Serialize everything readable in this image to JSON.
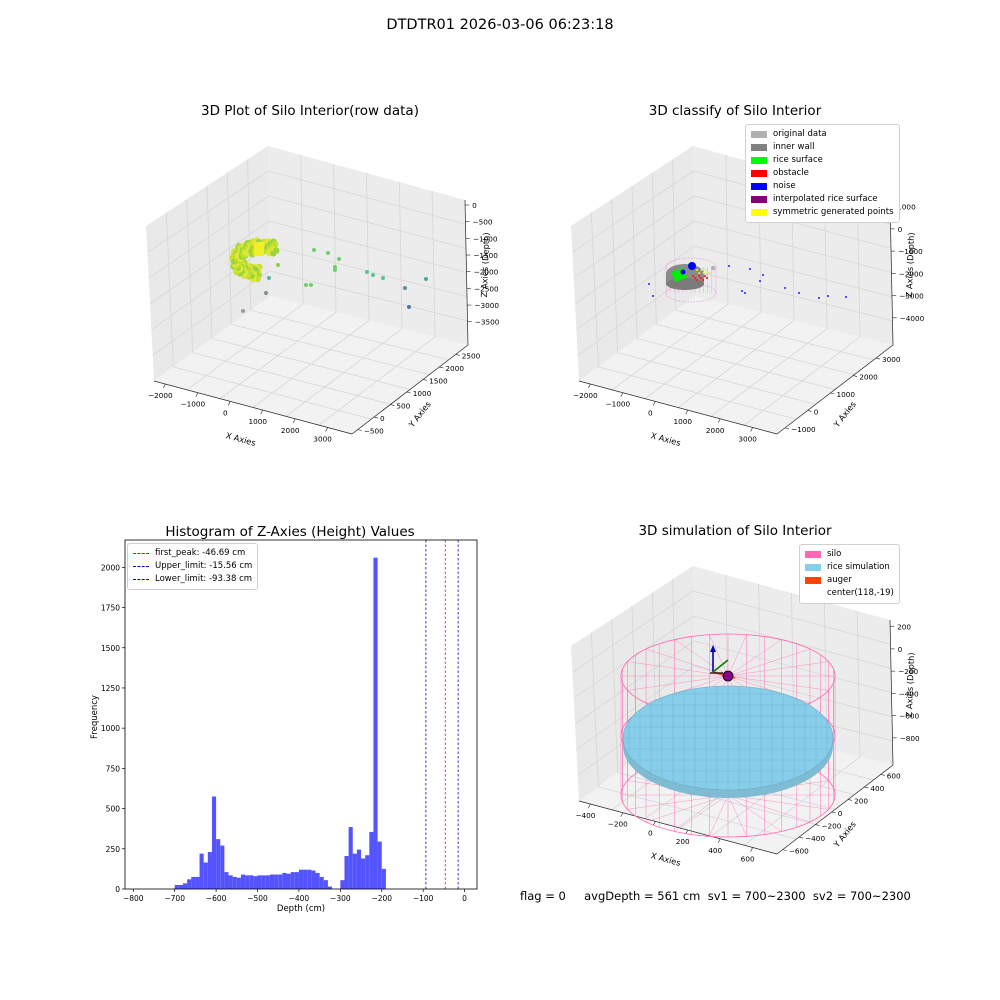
{
  "suptitle": "DTDTR01 2026-03-06 06:23:18",
  "colors": {
    "hist_bar": "#4b4bff",
    "first_peak": "#ff0000",
    "limit": "#0000cc",
    "silo": "#ff69b4",
    "rice_sim": "#87ceeb",
    "auger": "#ff4500",
    "pane": "#f2f2f2",
    "grid": "#d6d6d6"
  },
  "plot1": {
    "title": "3D Plot of Silo Interior(row data)",
    "xlabel": "X Axies",
    "ylabel": "Y Axies",
    "zlabel": "Z Axies (Depth)",
    "xticks": [
      "−2000",
      "−1000",
      "0",
      "1000",
      "2000",
      "3000"
    ],
    "yticks": [
      "−500",
      "0",
      "500",
      "1000",
      "1500",
      "2000",
      "2500"
    ],
    "zticks": [
      "0",
      "−500",
      "−1000",
      "−1500",
      "−2000",
      "−2500",
      "−3000",
      "−3500"
    ]
  },
  "plot2": {
    "title": "3D classify of Silo Interior",
    "xlabel": "X Axies",
    "ylabel": "Y Axies",
    "zlabel": "Z Axies (Depth)",
    "xticks": [
      "−2000",
      "−1000",
      "0",
      "1000",
      "2000",
      "3000"
    ],
    "yticks": [
      "−1000",
      "0",
      "1000",
      "2000",
      "3000"
    ],
    "zticks": [
      "1000",
      "0",
      "−1000",
      "−2000",
      "−3000",
      "−4000"
    ],
    "legend": [
      {
        "label": "original data",
        "color": "#b0b0b0"
      },
      {
        "label": "inner wall",
        "color": "#808080"
      },
      {
        "label": "rice surface",
        "color": "#00ff00"
      },
      {
        "label": "obstacle",
        "color": "#ff0000"
      },
      {
        "label": "noise",
        "color": "#0000ff"
      },
      {
        "label": "interpolated rice surface",
        "color": "#800080"
      },
      {
        "label": "symmetric generated points",
        "color": "#ffff00"
      }
    ]
  },
  "plot4": {
    "title": "3D simulation of Silo Interior",
    "xlabel": "X Axies",
    "ylabel": "Y Axies",
    "zlabel": "Z Axies (Depth)",
    "xticks": [
      "−400",
      "−200",
      "0",
      "200",
      "400",
      "600"
    ],
    "yticks": [
      "−600",
      "−400",
      "−200",
      "0",
      "200",
      "400",
      "600"
    ],
    "zticks": [
      "200",
      "0",
      "−200",
      "−400",
      "−600",
      "−800"
    ],
    "legend": [
      {
        "label": "silo",
        "color": "#ff69b4"
      },
      {
        "label": "rice simulation",
        "color": "#87ceeb"
      },
      {
        "label": "auger",
        "color": "#ff4500"
      },
      {
        "label": "center(118,-19)",
        "color": ""
      }
    ]
  },
  "footer": "flag = 0     avgDepth = 561 cm  sv1 = 700~2300  sv2 = 700~2300",
  "chart_data": [
    {
      "type": "bar",
      "title": "Histogram of Z-Axies (Height) Values",
      "xlabel": "Depth (cm)",
      "ylabel": "Frequency",
      "xlim": [
        -820,
        30
      ],
      "ylim": [
        0,
        2170
      ],
      "xticks": [
        -800,
        -700,
        -600,
        -500,
        -400,
        -300,
        -200,
        -100,
        0
      ],
      "yticks": [
        0,
        250,
        500,
        750,
        1000,
        1250,
        1500,
        1750,
        2000
      ],
      "bin_width": 10,
      "bin_starts": [
        -700,
        -690,
        -680,
        -670,
        -660,
        -650,
        -640,
        -630,
        -620,
        -610,
        -600,
        -590,
        -580,
        -570,
        -560,
        -550,
        -540,
        -530,
        -520,
        -510,
        -500,
        -490,
        -480,
        -470,
        -460,
        -450,
        -440,
        -430,
        -420,
        -410,
        -400,
        -390,
        -380,
        -370,
        -360,
        -350,
        -340,
        -330,
        -320,
        -310,
        -300,
        -290,
        -280,
        -270,
        -260,
        -250,
        -240,
        -230,
        -220,
        -210,
        -200,
        -190,
        -180,
        -170,
        -160,
        -150,
        -140,
        -130,
        -120,
        -110,
        -100,
        -90,
        -80,
        -70,
        -60,
        -50,
        -40,
        -30,
        -20,
        -10
      ],
      "values": [
        25,
        25,
        35,
        60,
        75,
        75,
        220,
        165,
        230,
        575,
        310,
        270,
        105,
        85,
        75,
        70,
        90,
        85,
        85,
        80,
        85,
        85,
        85,
        90,
        90,
        90,
        100,
        95,
        105,
        105,
        120,
        120,
        120,
        115,
        100,
        75,
        55,
        15,
        0,
        0,
        55,
        205,
        385,
        220,
        245,
        190,
        210,
        355,
        2060,
        295,
        125,
        0,
        0,
        0,
        0,
        0,
        0,
        0,
        0,
        0,
        0,
        0,
        0,
        0,
        0,
        0,
        0,
        0,
        0,
        0
      ],
      "lines": [
        {
          "label": "first_peak: -46.69 cm",
          "x": -46.69,
          "color": "#ff0000"
        },
        {
          "label": "Upper_limit: -15.56 cm",
          "x": -15.56,
          "color": "#0000cc"
        },
        {
          "label": "Lower_limit: -93.38 cm",
          "x": -93.38,
          "color": "#0000cc"
        }
      ],
      "legend_position": "top-left"
    }
  ]
}
